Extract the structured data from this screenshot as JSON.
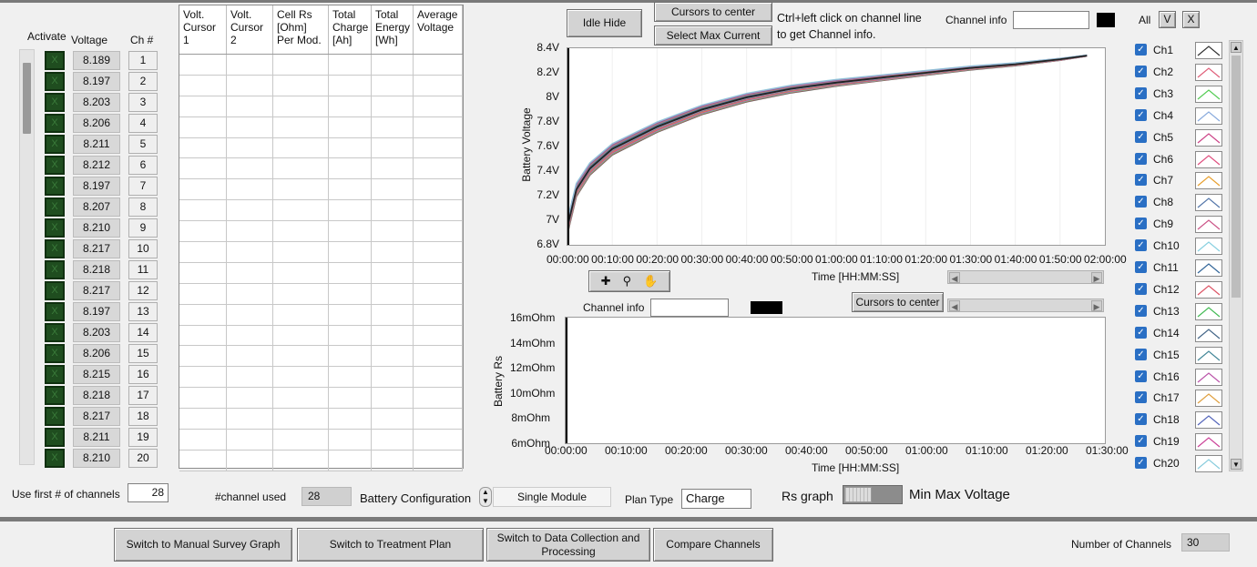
{
  "headers": {
    "activate": "Activate",
    "voltage": "Voltage",
    "channel": "Ch #"
  },
  "table": {
    "columns": [
      "Volt. Cursor 1",
      "Volt. Cursor 2",
      "Cell Rs [Ohm] Per Mod.",
      "Total Charge [Ah]",
      "Total Energy [Wh]",
      "Average Voltage"
    ],
    "row_count": 20
  },
  "channels": [
    {
      "act": "X",
      "voltage": "8.189",
      "ch": "1"
    },
    {
      "act": "X",
      "voltage": "8.197",
      "ch": "2"
    },
    {
      "act": "X",
      "voltage": "8.203",
      "ch": "3"
    },
    {
      "act": "X",
      "voltage": "8.206",
      "ch": "4"
    },
    {
      "act": "X",
      "voltage": "8.211",
      "ch": "5"
    },
    {
      "act": "X",
      "voltage": "8.212",
      "ch": "6"
    },
    {
      "act": "X",
      "voltage": "8.197",
      "ch": "7"
    },
    {
      "act": "X",
      "voltage": "8.207",
      "ch": "8"
    },
    {
      "act": "X",
      "voltage": "8.210",
      "ch": "9"
    },
    {
      "act": "X",
      "voltage": "8.217",
      "ch": "10"
    },
    {
      "act": "X",
      "voltage": "8.218",
      "ch": "11"
    },
    {
      "act": "X",
      "voltage": "8.217",
      "ch": "12"
    },
    {
      "act": "X",
      "voltage": "8.197",
      "ch": "13"
    },
    {
      "act": "X",
      "voltage": "8.203",
      "ch": "14"
    },
    {
      "act": "X",
      "voltage": "8.206",
      "ch": "15"
    },
    {
      "act": "X",
      "voltage": "8.215",
      "ch": "16"
    },
    {
      "act": "X",
      "voltage": "8.218",
      "ch": "17"
    },
    {
      "act": "X",
      "voltage": "8.217",
      "ch": "18"
    },
    {
      "act": "X",
      "voltage": "8.211",
      "ch": "19"
    },
    {
      "act": "X",
      "voltage": "8.210",
      "ch": "20"
    }
  ],
  "controls": {
    "idle_hide": "Idle Hide",
    "cursors_to_center": "Cursors to center",
    "select_max_current": "Select  Max Current",
    "hint_line1": "Ctrl+left click on channel line",
    "hint_line2": "to get Channel info.",
    "channel_info_label": "Channel info",
    "channel_info_value": "",
    "all_label": "All",
    "all_v": "V",
    "all_x": "X",
    "channel_info2_label": "Channel info",
    "channel_info2_value": "",
    "cursors_to_center2": "Cursors to center"
  },
  "voltage_plot": {
    "ylabel": "Battery Voltage",
    "xlabel": "Time [HH:MM:SS]",
    "yticks": [
      "8.4V",
      "8.2V",
      "8V",
      "7.8V",
      "7.6V",
      "7.4V",
      "7.2V",
      "7V",
      "6.8V"
    ],
    "xticks": [
      "00:00:00",
      "00:10:00",
      "00:20:00",
      "00:30:00",
      "00:40:00",
      "00:50:00",
      "01:00:00",
      "01:10:00",
      "01:20:00",
      "01:30:00",
      "01:40:00",
      "01:50:00",
      "02:00:00"
    ]
  },
  "rs_plot": {
    "ylabel": "Battery Rs",
    "xlabel": "Time [HH:MM:SS]",
    "yticks": [
      "16mOhm",
      "14mOhm",
      "12mOhm",
      "10mOhm",
      "8mOhm",
      "6mOhm"
    ],
    "xticks": [
      "00:00:00",
      "00:10:00",
      "00:20:00",
      "00:30:00",
      "00:40:00",
      "00:50:00",
      "01:00:00",
      "01:10:00",
      "01:20:00",
      "01:30:00"
    ]
  },
  "chart_data": {
    "type": "line",
    "title": "",
    "xlabel": "Time [HH:MM:SS]",
    "ylabel": "Battery Voltage",
    "xlim": [
      "00:00:00",
      "02:00:00"
    ],
    "ylim": [
      6.8,
      8.4
    ],
    "series_note": "",
    "x": [
      "00:00:00",
      "00:02:00",
      "00:05:00",
      "00:10:00",
      "00:20:00",
      "00:30:00",
      "00:40:00",
      "00:50:00",
      "01:00:00",
      "01:10:00",
      "01:20:00",
      "01:30:00",
      "01:40:00",
      "01:50:00",
      "01:56:00"
    ],
    "values": [
      6.95,
      7.25,
      7.42,
      7.58,
      7.76,
      7.9,
      8.0,
      8.07,
      8.12,
      8.16,
      8.2,
      8.24,
      8.27,
      8.31,
      8.34
    ]
  },
  "legend": [
    "Ch1",
    "Ch2",
    "Ch3",
    "Ch4",
    "Ch5",
    "Ch6",
    "Ch7",
    "Ch8",
    "Ch9",
    "Ch10",
    "Ch11",
    "Ch12",
    "Ch13",
    "Ch14",
    "Ch15",
    "Ch16",
    "Ch17",
    "Ch18",
    "Ch19",
    "Ch20"
  ],
  "legend_colors": [
    "#333333",
    "#e0607a",
    "#55cc55",
    "#88aadd",
    "#cc4488",
    "#e05080",
    "#e8a030",
    "#5577aa",
    "#cc5588",
    "#88d0e0",
    "#336699",
    "#dd5566",
    "#44bb55",
    "#446688",
    "#448899",
    "#bb55aa",
    "#e0a040",
    "#5566bb",
    "#cc4499",
    "#88ccdd"
  ],
  "bottom": {
    "use_first_label": "Use first # of channels",
    "use_first_value": "28",
    "channel_used_label": "#channel used",
    "channel_used_value": "28",
    "battery_config_label": "Battery Configuration",
    "battery_config_value": "Single Module",
    "plan_type_label": "Plan Type",
    "plan_type_value": "Charge",
    "rs_graph_label": "Rs graph",
    "min_max_label": "Min Max Voltage",
    "btn_manual": "Switch to Manual  Survey Graph",
    "btn_treatment": "Switch to Treatment Plan",
    "btn_data": "Switch to Data Collection and Processing",
    "btn_compare": "Compare  Channels",
    "num_channels_label": "Number of  Channels",
    "num_channels_value": "30"
  }
}
